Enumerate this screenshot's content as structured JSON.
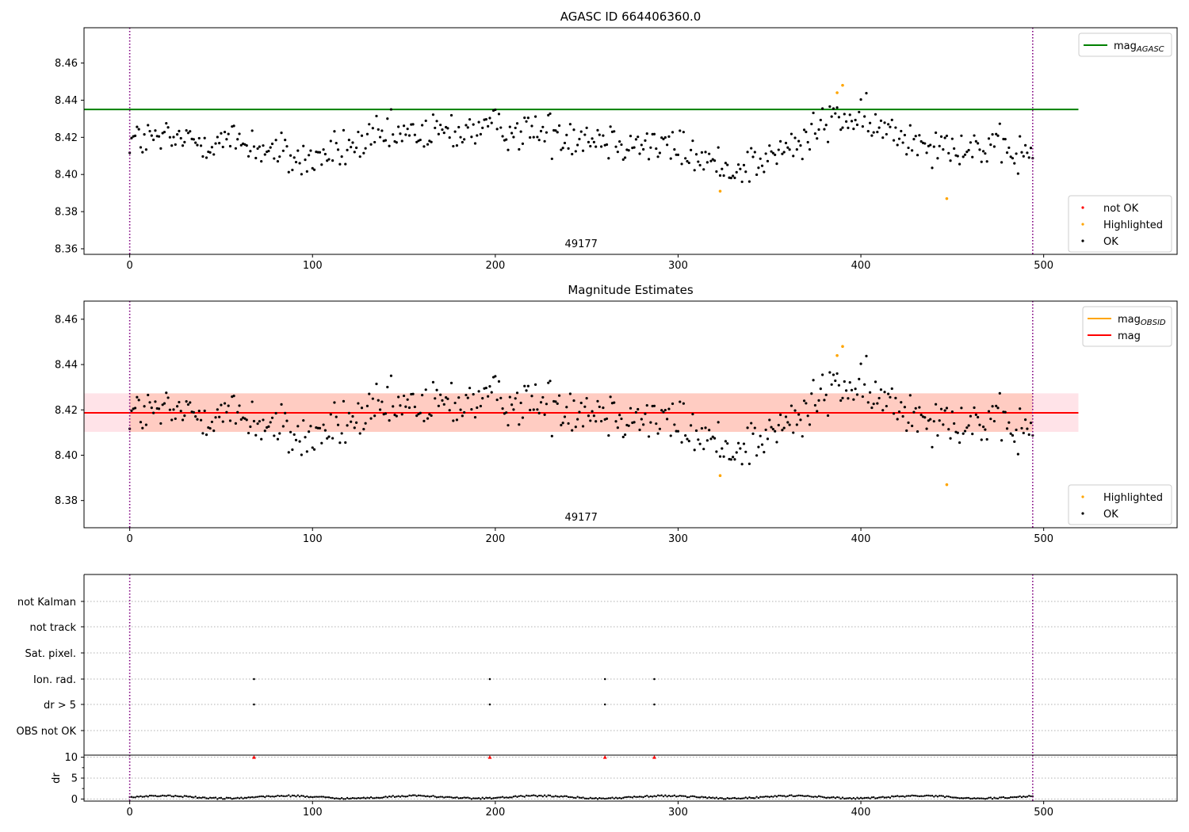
{
  "colors": {
    "ok": "#000000",
    "highlighted": "#ffa500",
    "not_ok": "#ff0000",
    "agasc_line": "#008000",
    "obsid_line": "#ffa500",
    "mag_line": "#ff0000",
    "mag_band": "#ffc0cb",
    "obsid_band": "#ffa07a",
    "vline": "#800080",
    "grid": "#b0b0b0"
  },
  "chart_data": [
    {
      "type": "scatter",
      "title": "AGASC ID 664406360.0",
      "annotation": "49177",
      "xlim": [
        -25,
        573
      ],
      "ylim": [
        8.357,
        8.479
      ],
      "xticks": [
        0,
        100,
        200,
        300,
        400,
        500
      ],
      "yticks": [
        8.36,
        8.38,
        8.4,
        8.42,
        8.44,
        8.46
      ],
      "vlines": [
        0,
        494
      ],
      "hline": {
        "y": 8.435,
        "x": [
          -25,
          519
        ],
        "label": "mag",
        "sub": "AGASC"
      },
      "legend_top": [
        {
          "label": "mag",
          "sub": "AGASC",
          "kind": "line",
          "color": "agasc_line"
        }
      ],
      "legend_bottom": [
        {
          "label": "not OK",
          "kind": "marker",
          "color": "not_ok"
        },
        {
          "label": "Highlighted",
          "kind": "marker",
          "color": "highlighted"
        },
        {
          "label": "OK",
          "kind": "marker",
          "color": "ok"
        }
      ],
      "highlighted_points": [
        [
          323,
          8.391
        ],
        [
          387,
          8.444
        ],
        [
          390,
          8.448
        ],
        [
          447,
          8.387
        ]
      ]
    },
    {
      "type": "scatter",
      "title": "Magnitude Estimates",
      "annotation": "49177",
      "xlim": [
        -25,
        573
      ],
      "ylim": [
        8.368,
        8.468
      ],
      "xticks": [
        0,
        100,
        200,
        300,
        400,
        500
      ],
      "yticks": [
        8.38,
        8.4,
        8.42,
        8.44,
        8.46
      ],
      "vlines": [
        0,
        494
      ],
      "mag_line": 8.4187,
      "mag_band": [
        8.4103,
        8.4273
      ],
      "legend_top": [
        {
          "label": "mag",
          "sub": "OBSID",
          "kind": "line",
          "color": "obsid_line"
        },
        {
          "label": "mag",
          "kind": "line",
          "color": "mag_line"
        }
      ],
      "legend_bottom": [
        {
          "label": "Highlighted",
          "kind": "marker",
          "color": "highlighted"
        },
        {
          "label": "OK",
          "kind": "marker",
          "color": "ok"
        }
      ],
      "highlighted_points": [
        [
          323,
          8.391
        ],
        [
          387,
          8.444
        ],
        [
          390,
          8.448
        ],
        [
          447,
          8.387
        ]
      ]
    },
    {
      "type": "scatter",
      "title": "",
      "xlim": [
        -25,
        573
      ],
      "vlines": [
        0,
        494
      ],
      "flag_rows": [
        "not Kalman",
        "not track",
        "Sat. pixel.",
        "Ion. rad.",
        "dr > 5",
        "OBS not OK"
      ],
      "flag_points": {
        "Ion. rad.": [
          68,
          197,
          260,
          287
        ],
        "dr > 5": [
          68,
          197,
          260,
          287
        ]
      }
    },
    {
      "type": "scatter",
      "title": "",
      "ylabel": "dr",
      "xlim": [
        -25,
        573
      ],
      "ylim": [
        -0.5,
        10.5
      ],
      "xticks": [
        0,
        100,
        200,
        300,
        400,
        500
      ],
      "yticks": [
        0,
        5,
        10
      ],
      "vlines": [
        0,
        494
      ],
      "outlier_markers": [
        [
          68,
          10
        ],
        [
          197,
          10
        ],
        [
          260,
          10
        ],
        [
          287,
          10
        ]
      ],
      "typical_range": [
        0,
        1.2
      ]
    }
  ]
}
